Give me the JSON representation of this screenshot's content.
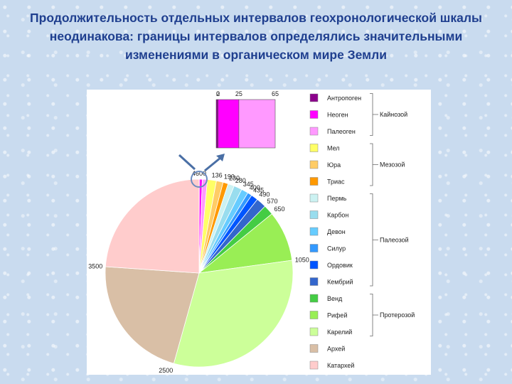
{
  "title": "Продолжительность отдельных интервалов геохронологической шкалы неодинакова: границы интервалов определялись значительными изменениями в органическом мире Земли",
  "chart_data": {
    "type": "pie",
    "slices": [
      {
        "name": "Антропоген",
        "from": 0,
        "to": 2,
        "color": "#8b008b"
      },
      {
        "name": "Неоген",
        "from": 2,
        "to": 25,
        "color": "#ff00ff"
      },
      {
        "name": "Палеоген",
        "from": 25,
        "to": 65,
        "color": "#ff99ff"
      },
      {
        "name": "Мел",
        "from": 65,
        "to": 136,
        "color": "#ffff66"
      },
      {
        "name": "Юра",
        "from": 136,
        "to": 190,
        "color": "#ffcc66"
      },
      {
        "name": "Триас",
        "from": 190,
        "to": 230,
        "color": "#ff9900"
      },
      {
        "name": "Пермь",
        "from": 230,
        "to": 280,
        "color": "#ccf2f2"
      },
      {
        "name": "Карбон",
        "from": 280,
        "to": 345,
        "color": "#99ddee"
      },
      {
        "name": "Девон",
        "from": 345,
        "to": 400,
        "color": "#66ccff"
      },
      {
        "name": "Силур",
        "from": 400,
        "to": 435,
        "color": "#3399ff"
      },
      {
        "name": "Ордовик",
        "from": 435,
        "to": 490,
        "color": "#0055ff"
      },
      {
        "name": "Кембрий",
        "from": 490,
        "to": 570,
        "color": "#3366cc"
      },
      {
        "name": "Венд",
        "from": 570,
        "to": 650,
        "color": "#44cc44"
      },
      {
        "name": "Рифей",
        "from": 650,
        "to": 1050,
        "color": "#99ee55"
      },
      {
        "name": "Карелий",
        "from": 1050,
        "to": 2500,
        "color": "#ccff99"
      },
      {
        "name": "Архей",
        "from": 2500,
        "to": 3500,
        "color": "#d9bfa6"
      },
      {
        "name": "Катархей",
        "from": 3500,
        "to": 4600,
        "color": "#ffcccc"
      }
    ],
    "boundary_labels": [
      {
        "value": 4600,
        "text": "4600"
      },
      {
        "value": 136,
        "text": "136"
      },
      {
        "value": 190,
        "text": "190"
      },
      {
        "value": 230,
        "text": "230"
      },
      {
        "value": 280,
        "text": "280"
      },
      {
        "value": 345,
        "text": "345"
      },
      {
        "value": 400,
        "text": "400"
      },
      {
        "value": 435,
        "text": "435"
      },
      {
        "value": 490,
        "text": "490"
      },
      {
        "value": 570,
        "text": "570"
      },
      {
        "value": 650,
        "text": "650"
      },
      {
        "value": 1050,
        "text": "1050"
      },
      {
        "value": 2500,
        "text": "2500"
      },
      {
        "value": 3500,
        "text": "3500"
      }
    ],
    "zoom": {
      "ticks": [
        {
          "value": 0,
          "text": "0"
        },
        {
          "value": 2,
          "text": "2"
        },
        {
          "value": 25,
          "text": "25"
        },
        {
          "value": 65,
          "text": "65"
        }
      ]
    },
    "groups": [
      {
        "name": "Кайнозой",
        "members": [
          "Антропоген",
          "Неоген",
          "Палеоген"
        ]
      },
      {
        "name": "Мезозой",
        "members": [
          "Мел",
          "Юра",
          "Триас"
        ]
      },
      {
        "name": "Палеозой",
        "members": [
          "Пермь",
          "Карбон",
          "Девон",
          "Силур",
          "Ордовик",
          "Кембрий"
        ]
      },
      {
        "name": "Протерозой",
        "members": [
          "Венд",
          "Рифей",
          "Карелий"
        ]
      }
    ],
    "legend_position": "right"
  }
}
